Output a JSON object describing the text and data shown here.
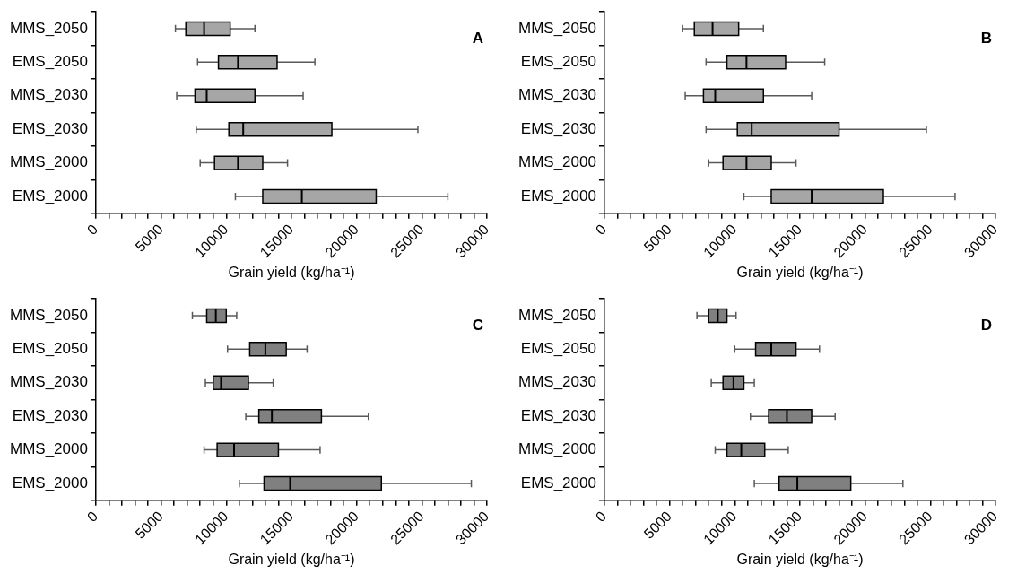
{
  "chart_data": [
    {
      "type": "box",
      "orientation": "horizontal",
      "color": "#a6a6a6",
      "xlabel": "Grain yield (kg/ha⁻¹)",
      "annotations": [
        "A"
      ],
      "categories": [
        "MMS_2050",
        "EMS_2050",
        "MMS_2030",
        "EMS_2030",
        "MMS_2000",
        "EMS_2000"
      ],
      "xlim": [
        0,
        30000
      ],
      "xticks": [
        0,
        {
          "value": 1000,
          "label": null
        },
        {
          "value": 2000,
          "label": null
        },
        {
          "value": 3000,
          "label": null
        },
        {
          "value": 4000,
          "label": null
        },
        5000,
        {
          "value": 6000,
          "label": null
        },
        {
          "value": 7000,
          "label": null
        },
        {
          "value": 8000,
          "label": null
        },
        {
          "value": 9000,
          "label": null
        },
        10000,
        {
          "value": 11000,
          "label": null
        },
        {
          "value": 12000,
          "label": null
        },
        {
          "value": 13000,
          "label": null
        },
        {
          "value": 14000,
          "label": null
        },
        15000,
        {
          "value": 16000,
          "label": null
        },
        {
          "value": 17000,
          "label": null
        },
        {
          "value": 18000,
          "label": null
        },
        {
          "value": 19000,
          "label": null
        },
        20000,
        {
          "value": 21000,
          "label": null
        },
        {
          "value": 22000,
          "label": null
        },
        {
          "value": 23000,
          "label": null
        },
        {
          "value": 24000,
          "label": null
        },
        25000,
        {
          "value": 26000,
          "label": null
        },
        {
          "value": 27000,
          "label": null
        },
        {
          "value": 28000,
          "label": null
        },
        {
          "value": 29000,
          "label": null
        },
        30000
      ],
      "boxes": [
        {
          "low": 6100,
          "q1": 6900,
          "median": 8300,
          "q3": 10300,
          "high": 12200
        },
        {
          "low": 7800,
          "q1": 9400,
          "median": 10900,
          "q3": 13900,
          "high": 16800
        },
        {
          "low": 6200,
          "q1": 7600,
          "median": 8500,
          "q3": 12200,
          "high": 15900
        },
        {
          "low": 7700,
          "q1": 10200,
          "median": 11300,
          "q3": 18100,
          "high": 24700
        },
        {
          "low": 8000,
          "q1": 9100,
          "median": 10900,
          "q3": 12800,
          "high": 14700
        },
        {
          "low": 10700,
          "q1": 12800,
          "median": 15800,
          "q3": 21500,
          "high": 27000
        }
      ]
    },
    {
      "type": "box",
      "orientation": "horizontal",
      "color": "#a6a6a6",
      "xlabel": "Grain yield (kg/ha⁻¹)",
      "annotations": [
        "B"
      ],
      "categories": [
        "MMS_2050",
        "EMS_2050",
        "MMS_2030",
        "EMS_2030",
        "MMS_2000",
        "EMS_2000"
      ],
      "xlim": [
        0,
        30000
      ],
      "xticks": [
        0,
        {
          "value": 1000,
          "label": null
        },
        {
          "value": 2000,
          "label": null
        },
        {
          "value": 3000,
          "label": null
        },
        {
          "value": 4000,
          "label": null
        },
        5000,
        {
          "value": 6000,
          "label": null
        },
        {
          "value": 7000,
          "label": null
        },
        {
          "value": 8000,
          "label": null
        },
        {
          "value": 9000,
          "label": null
        },
        10000,
        {
          "value": 11000,
          "label": null
        },
        {
          "value": 12000,
          "label": null
        },
        {
          "value": 13000,
          "label": null
        },
        {
          "value": 14000,
          "label": null
        },
        15000,
        {
          "value": 16000,
          "label": null
        },
        {
          "value": 17000,
          "label": null
        },
        {
          "value": 18000,
          "label": null
        },
        {
          "value": 19000,
          "label": null
        },
        20000,
        {
          "value": 21000,
          "label": null
        },
        {
          "value": 22000,
          "label": null
        },
        {
          "value": 23000,
          "label": null
        },
        {
          "value": 24000,
          "label": null
        },
        25000,
        {
          "value": 26000,
          "label": null
        },
        {
          "value": 27000,
          "label": null
        },
        {
          "value": 28000,
          "label": null
        },
        {
          "value": 29000,
          "label": null
        },
        30000
      ],
      "boxes": [
        {
          "low": 6000,
          "q1": 6900,
          "median": 8300,
          "q3": 10300,
          "high": 12200
        },
        {
          "low": 7800,
          "q1": 9400,
          "median": 10900,
          "q3": 13900,
          "high": 16900
        },
        {
          "low": 6200,
          "q1": 7600,
          "median": 8500,
          "q3": 12200,
          "high": 15900
        },
        {
          "low": 7800,
          "q1": 10200,
          "median": 11300,
          "q3": 18000,
          "high": 24700
        },
        {
          "low": 8000,
          "q1": 9100,
          "median": 10900,
          "q3": 12800,
          "high": 14700
        },
        {
          "low": 10700,
          "q1": 12800,
          "median": 15900,
          "q3": 21400,
          "high": 26900
        }
      ]
    },
    {
      "type": "box",
      "orientation": "horizontal",
      "color": "#808080",
      "xlabel": "Grain yield (kg/ha⁻¹)",
      "annotations": [
        "C"
      ],
      "categories": [
        "MMS_2050",
        "EMS_2050",
        "MMS_2030",
        "EMS_2030",
        "MMS_2000",
        "EMS_2000"
      ],
      "xlim": [
        0,
        30000
      ],
      "xticks": [
        0,
        {
          "value": 1000,
          "label": null
        },
        {
          "value": 2000,
          "label": null
        },
        {
          "value": 3000,
          "label": null
        },
        {
          "value": 4000,
          "label": null
        },
        5000,
        {
          "value": 6000,
          "label": null
        },
        {
          "value": 7000,
          "label": null
        },
        {
          "value": 8000,
          "label": null
        },
        {
          "value": 9000,
          "label": null
        },
        10000,
        {
          "value": 11000,
          "label": null
        },
        {
          "value": 12000,
          "label": null
        },
        {
          "value": 13000,
          "label": null
        },
        {
          "value": 14000,
          "label": null
        },
        15000,
        {
          "value": 16000,
          "label": null
        },
        {
          "value": 17000,
          "label": null
        },
        {
          "value": 18000,
          "label": null
        },
        {
          "value": 19000,
          "label": null
        },
        20000,
        {
          "value": 21000,
          "label": null
        },
        {
          "value": 22000,
          "label": null
        },
        {
          "value": 23000,
          "label": null
        },
        {
          "value": 24000,
          "label": null
        },
        25000,
        {
          "value": 26000,
          "label": null
        },
        {
          "value": 27000,
          "label": null
        },
        {
          "value": 28000,
          "label": null
        },
        {
          "value": 29000,
          "label": null
        },
        30000
      ],
      "boxes": [
        {
          "low": 7400,
          "q1": 8500,
          "median": 9200,
          "q3": 10000,
          "high": 10800
        },
        {
          "low": 10100,
          "q1": 11800,
          "median": 13000,
          "q3": 14600,
          "high": 16200
        },
        {
          "low": 8400,
          "q1": 9000,
          "median": 9600,
          "q3": 11700,
          "high": 13600
        },
        {
          "low": 11500,
          "q1": 12500,
          "median": 13500,
          "q3": 17300,
          "high": 20900
        },
        {
          "low": 8300,
          "q1": 9300,
          "median": 10600,
          "q3": 14000,
          "high": 17200
        },
        {
          "low": 11000,
          "q1": 12900,
          "median": 14900,
          "q3": 21900,
          "high": 28800
        }
      ]
    },
    {
      "type": "box",
      "orientation": "horizontal",
      "color": "#808080",
      "xlabel": "Grain yield (kg/ha⁻¹)",
      "annotations": [
        "D"
      ],
      "categories": [
        "MMS_2050",
        "EMS_2050",
        "MMS_2030",
        "EMS_2030",
        "MMS_2000",
        "EMS_2000"
      ],
      "xlim": [
        0,
        30000
      ],
      "xticks": [
        0,
        {
          "value": 1000,
          "label": null
        },
        {
          "value": 2000,
          "label": null
        },
        {
          "value": 3000,
          "label": null
        },
        {
          "value": 4000,
          "label": null
        },
        5000,
        {
          "value": 6000,
          "label": null
        },
        {
          "value": 7000,
          "label": null
        },
        {
          "value": 8000,
          "label": null
        },
        {
          "value": 9000,
          "label": null
        },
        10000,
        {
          "value": 11000,
          "label": null
        },
        {
          "value": 12000,
          "label": null
        },
        {
          "value": 13000,
          "label": null
        },
        {
          "value": 14000,
          "label": null
        },
        15000,
        {
          "value": 16000,
          "label": null
        },
        {
          "value": 17000,
          "label": null
        },
        {
          "value": 18000,
          "label": null
        },
        {
          "value": 19000,
          "label": null
        },
        20000,
        {
          "value": 21000,
          "label": null
        },
        {
          "value": 22000,
          "label": null
        },
        {
          "value": 23000,
          "label": null
        },
        {
          "value": 24000,
          "label": null
        },
        25000,
        {
          "value": 26000,
          "label": null
        },
        {
          "value": 27000,
          "label": null
        },
        {
          "value": 28000,
          "label": null
        },
        {
          "value": 29000,
          "label": null
        },
        30000
      ],
      "boxes": [
        {
          "low": 7100,
          "q1": 8000,
          "median": 8700,
          "q3": 9400,
          "high": 10100
        },
        {
          "low": 10000,
          "q1": 11600,
          "median": 12800,
          "q3": 14700,
          "high": 16500
        },
        {
          "low": 8200,
          "q1": 9100,
          "median": 9900,
          "q3": 10700,
          "high": 11500
        },
        {
          "low": 11200,
          "q1": 12600,
          "median": 14000,
          "q3": 15900,
          "high": 17700
        },
        {
          "low": 8500,
          "q1": 9400,
          "median": 10500,
          "q3": 12300,
          "high": 14100
        },
        {
          "low": 11500,
          "q1": 13400,
          "median": 14800,
          "q3": 18900,
          "high": 22900
        }
      ]
    }
  ]
}
